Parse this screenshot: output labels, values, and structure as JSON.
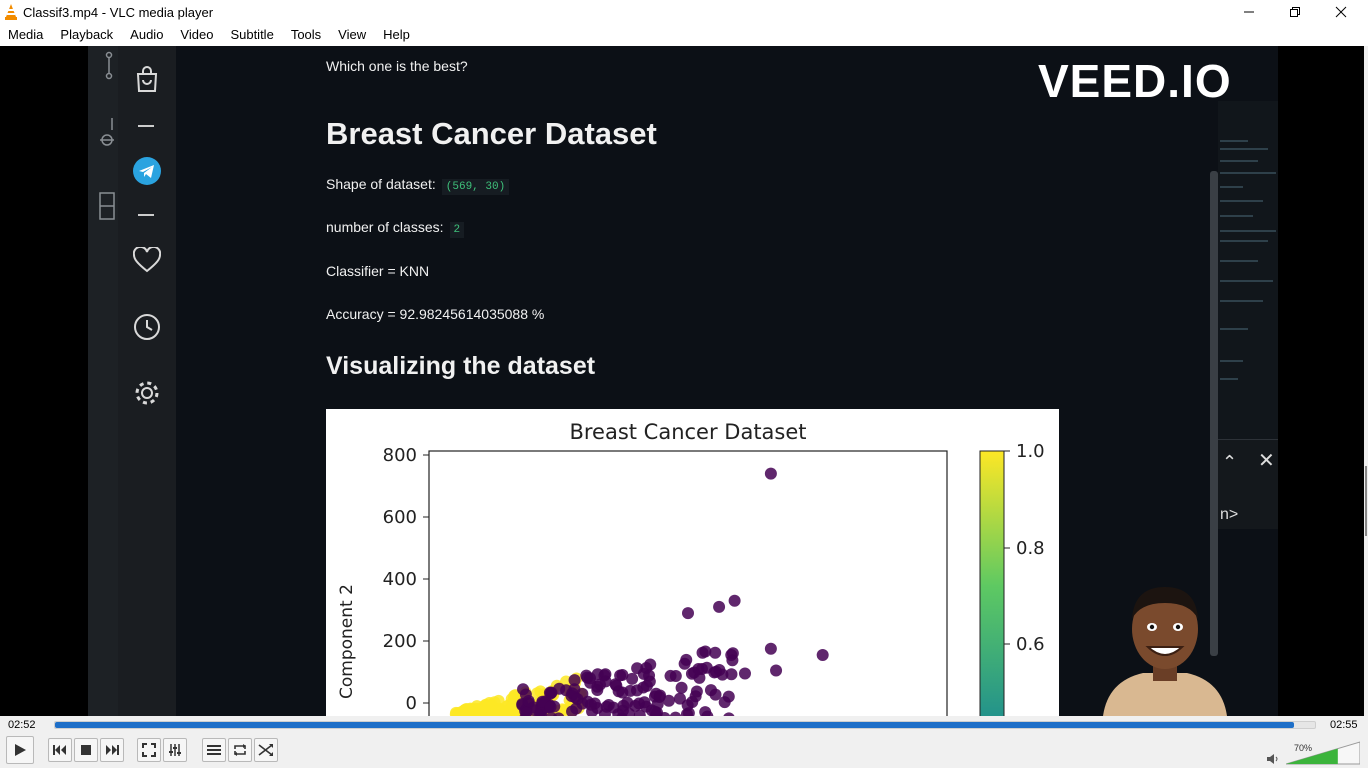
{
  "window": {
    "title": "Classif3.mp4 - VLC media player",
    "buttons": [
      "minimize",
      "restore",
      "close"
    ]
  },
  "menu": [
    "Media",
    "Playback",
    "Audio",
    "Video",
    "Subtitle",
    "Tools",
    "View",
    "Help"
  ],
  "video": {
    "question": "Which one is the best?",
    "dataset_heading": "Breast Cancer Dataset",
    "shape_label": "Shape of dataset:",
    "shape_value": "(569, 30)",
    "classes_label": "number of classes:",
    "classes_value": "2",
    "classifier": "Classifier = KNN",
    "accuracy": "Accuracy = 92.98245614035088 %",
    "viz_heading": "Visualizing the dataset",
    "watermark": "VEED.IO",
    "find_partial": "n>",
    "side_icons": [
      "source-control-icon",
      "debug-icon",
      "shopping-bag-icon",
      "telegram-icon",
      "sidebar-layout-icon",
      "heart-icon",
      "history-icon",
      "settings-icon"
    ]
  },
  "chart_data": {
    "type": "scatter",
    "title": "Breast Cancer Dataset",
    "ylabel": "Component 2",
    "xlabel": "",
    "ylim": [
      -50,
      830
    ],
    "yticks": [
      "800",
      "600",
      "400",
      "200",
      "0"
    ],
    "colorbar": {
      "ticks": [
        "1.0",
        "0.8",
        "0.6"
      ],
      "colormap": "viridis"
    },
    "colors": {
      "class_0": "#440154",
      "class_1": "#fde725"
    },
    "outliers": [
      {
        "x": 0.66,
        "y": 740
      },
      {
        "x": 0.76,
        "y": 155
      },
      {
        "x": 0.5,
        "y": 290
      },
      {
        "x": 0.56,
        "y": 310
      },
      {
        "x": 0.59,
        "y": 330
      },
      {
        "x": 0.61,
        "y": 95
      },
      {
        "x": 0.66,
        "y": 175
      },
      {
        "x": 0.67,
        "y": 105
      }
    ]
  },
  "player": {
    "elapsed": "02:52",
    "total": "02:55",
    "progress": 0.983,
    "volume_label": "70%",
    "volume": 0.7,
    "accent": "#1e6fc8"
  }
}
